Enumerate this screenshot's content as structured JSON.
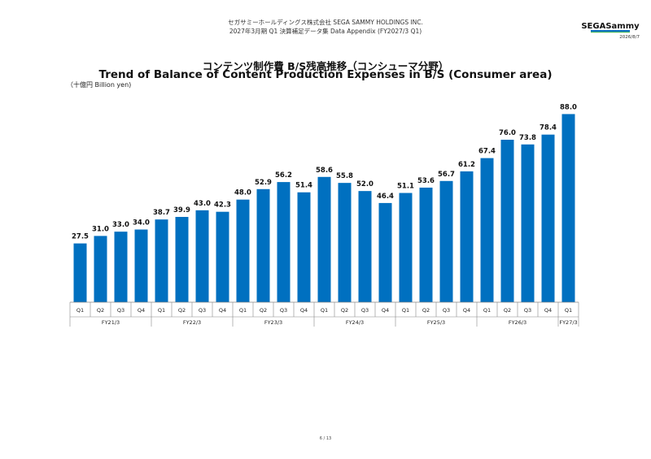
{
  "header": {
    "line1": "セガサミーホールディングス株式会社 SEGA SAMMY HOLDINGS INC.",
    "line2": "2027年3月期 Q1 決算補足データ集 Data Appendix (FY2027/3 Q1)",
    "logo_text": "SEGASammy",
    "date": "2026/8/7"
  },
  "title_jp": "コンテンツ制作費 B/S残高推移（コンシューマ分野）",
  "title_en": "Trend of Balance of Content Production Expenses in B/S (Consumer area)",
  "unit": "（十億円 Billion yen)",
  "colors": {
    "bar": "#0070c0",
    "axis": "#888888"
  },
  "chart_data": {
    "type": "bar",
    "title": "Trend of Balance of Content Production Expenses in B/S (Consumer area)",
    "ylabel": "",
    "xlabel": "",
    "ylim": [
      0,
      95
    ],
    "grid": false,
    "categories": [
      "Q1",
      "Q2",
      "Q3",
      "Q4",
      "Q1",
      "Q2",
      "Q3",
      "Q4",
      "Q1",
      "Q2",
      "Q3",
      "Q4",
      "Q1",
      "Q2",
      "Q3",
      "Q4",
      "Q1",
      "Q2",
      "Q3",
      "Q4",
      "Q1",
      "Q2",
      "Q3",
      "Q4",
      "Q1"
    ],
    "values": [
      27.5,
      31.0,
      33.0,
      34.0,
      38.7,
      39.9,
      43.0,
      42.3,
      48.0,
      52.9,
      56.2,
      51.4,
      58.6,
      55.8,
      52.0,
      46.4,
      51.1,
      53.6,
      56.7,
      61.2,
      67.4,
      76.0,
      73.8,
      78.4,
      88.0
    ],
    "value_labels": [
      "27.5",
      "31.0",
      "33.0",
      "34.0",
      "38.7",
      "39.9",
      "43.0",
      "42.3",
      "48.0",
      "52.9",
      "56.2",
      "51.4",
      "58.6",
      "55.8",
      "52.0",
      "46.4",
      "51.1",
      "53.6",
      "56.7",
      "61.2",
      "67.4",
      "76.0",
      "73.8",
      "78.4",
      "88.0"
    ],
    "groups": [
      {
        "label": "FY21/3",
        "count": 4
      },
      {
        "label": "FY22/3",
        "count": 4
      },
      {
        "label": "FY23/3",
        "count": 4
      },
      {
        "label": "FY24/3",
        "count": 4
      },
      {
        "label": "FY25/3",
        "count": 4
      },
      {
        "label": "FY26/3",
        "count": 4
      },
      {
        "label": "FY27/3",
        "count": 1
      }
    ]
  },
  "footer": {
    "page": "6 / 13"
  }
}
